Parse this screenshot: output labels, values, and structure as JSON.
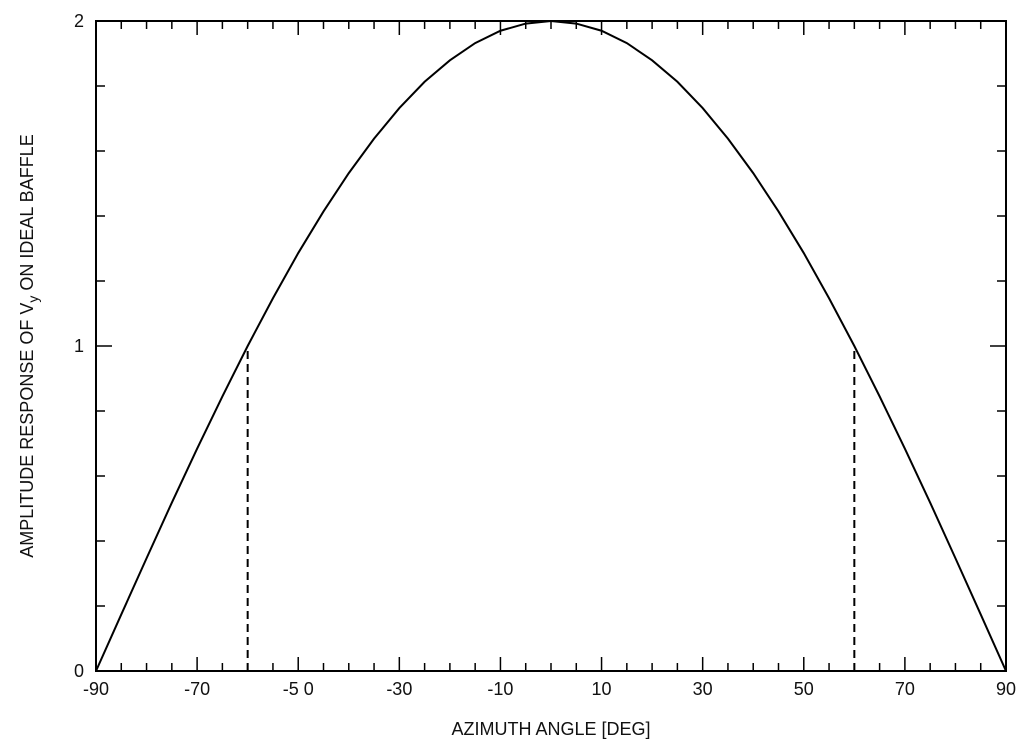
{
  "chart_data": {
    "type": "line",
    "xlabel": "AZIMUTH ANGLE [DEG]",
    "ylabel": {
      "prefix": "AMPLITUDE RESPONSE OF V",
      "subscript": "y",
      "suffix": " ON IDEAL BAFFLE"
    },
    "xlim": [
      -90,
      90
    ],
    "ylim": [
      0,
      2
    ],
    "x_tick_labels": [
      {
        "value": -90,
        "label": "-90"
      },
      {
        "value": -70,
        "label": "-70"
      },
      {
        "value": -50,
        "label": "-5 0"
      },
      {
        "value": -30,
        "label": "-30"
      },
      {
        "value": -10,
        "label": "-10"
      },
      {
        "value": 10,
        "label": "10"
      },
      {
        "value": 30,
        "label": "30"
      },
      {
        "value": 50,
        "label": "50"
      },
      {
        "value": 70,
        "label": "70"
      },
      {
        "value": 90,
        "label": "90"
      }
    ],
    "x_minor_tick_step": 5,
    "y_tick_labels": [
      {
        "value": 0,
        "label": "0"
      },
      {
        "value": 1,
        "label": "1"
      },
      {
        "value": 2,
        "label": "2"
      }
    ],
    "y_minor_tick_step": 0.2,
    "grid": false,
    "series": [
      {
        "style": "solid",
        "color": "#000000",
        "x": [
          -90,
          -85,
          -80,
          -75,
          -70,
          -65,
          -60,
          -55,
          -50,
          -45,
          -40,
          -35,
          -30,
          -25,
          -20,
          -15,
          -10,
          -5,
          0,
          5,
          10,
          15,
          20,
          25,
          30,
          35,
          40,
          45,
          50,
          55,
          60,
          65,
          70,
          75,
          80,
          85,
          90
        ],
        "y": [
          0,
          0.174,
          0.347,
          0.518,
          0.684,
          0.845,
          1.0,
          1.147,
          1.286,
          1.414,
          1.532,
          1.638,
          1.732,
          1.813,
          1.879,
          1.932,
          1.97,
          1.992,
          2.0,
          1.992,
          1.97,
          1.932,
          1.879,
          1.813,
          1.732,
          1.638,
          1.532,
          1.414,
          1.286,
          1.147,
          1.0,
          0.845,
          0.684,
          0.518,
          0.347,
          0.174,
          0
        ]
      }
    ],
    "annotations": [
      {
        "type": "vertical-dashed-line",
        "x": -60,
        "y_from": 0,
        "y_to": 1
      },
      {
        "type": "vertical-dashed-line",
        "x": 60,
        "y_from": 0,
        "y_to": 1
      }
    ]
  }
}
